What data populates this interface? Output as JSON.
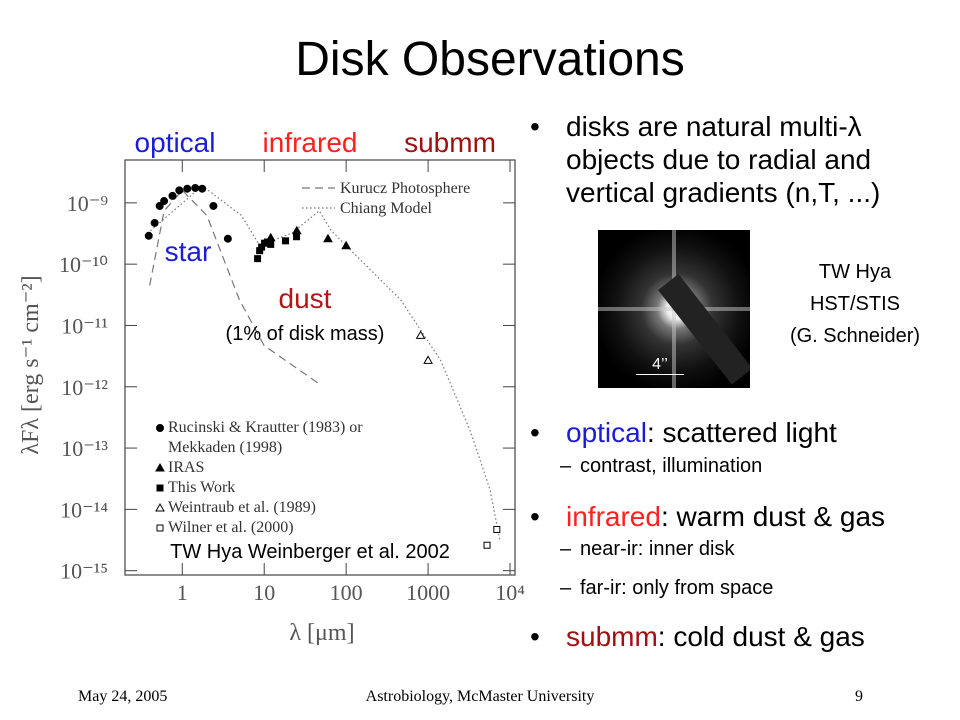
{
  "slide": {
    "title": "Disk Observations",
    "intro_bullet": "disks are natural multi-λ objects due to radial and vertical gradients (n,T, ...)",
    "image": {
      "scale_label": "4’’",
      "caption": [
        "TW Hya",
        "HST/STIS",
        "(G. Schneider)"
      ]
    },
    "bullets": [
      {
        "keyword": "optical",
        "keyword_color": "#1c1cd8",
        "text": ": scattered light",
        "sub": [
          "contrast, illumination"
        ]
      },
      {
        "keyword": "infrared",
        "keyword_color": "#ff2020",
        "text": ": warm dust & gas",
        "sub": [
          "near-ir: inner disk",
          "far-ir: only from space"
        ]
      },
      {
        "keyword": "submm",
        "keyword_color": "#a01010",
        "text": ": cold dust & gas",
        "sub": []
      }
    ],
    "footer": {
      "date": "May 24, 2005",
      "venue": "Astrobiology, McMaster University",
      "page": "9"
    }
  },
  "chart_data": {
    "type": "scatter",
    "x_label": "λ [μm]",
    "y_label": "λFλ [erg s⁻¹ cm⁻²]",
    "xscale": "log",
    "yscale": "log",
    "xlim": [
      0.2,
      11500
    ],
    "ylim": [
      8.5e-16,
      5e-09
    ],
    "xticks": [
      1,
      10,
      100,
      1000,
      {
        "value": 10000,
        "label": "10⁴"
      }
    ],
    "yticks": [
      {
        "value": 1e-09,
        "label": "10⁻⁹"
      },
      {
        "value": 1e-10,
        "label": "10⁻¹⁰"
      },
      {
        "value": 1e-11,
        "label": "10⁻¹¹"
      },
      {
        "value": 1e-12,
        "label": "10⁻¹²"
      },
      {
        "value": 1e-13,
        "label": "10⁻¹³"
      },
      {
        "value": 1e-14,
        "label": "10⁻¹⁴"
      },
      {
        "value": 1e-15,
        "label": "10⁻¹⁵"
      }
    ],
    "annotations": [
      {
        "text": "optical",
        "color": "#1c1cd8"
      },
      {
        "text": "infrared",
        "color": "#ff2020"
      },
      {
        "text": "submm",
        "color": "#a01010"
      },
      {
        "text": "star",
        "color": "#1c1cd8"
      },
      {
        "text": "dust",
        "color": "#b01818"
      },
      {
        "text": "(1% of disk mass)",
        "color": "#000000"
      },
      {
        "text": "TW Hya  Weinberger et al.  2002",
        "color": "#000000"
      }
    ],
    "series": [
      {
        "name": "Kurucz Photosphere",
        "style": "dashed",
        "color": "#777777",
        "x": [
          0.4,
          0.6,
          1.0,
          2,
          5,
          10,
          50
        ],
        "values": [
          4.5e-11,
          7.4e-10,
          1.6e-09,
          6.2e-10,
          2.6e-11,
          4.7e-12,
          1.05e-12
        ]
      },
      {
        "name": "Chiang Model",
        "style": "dotted",
        "color": "#777777",
        "x": [
          0.41,
          1.75,
          5.3,
          8.8,
          21.6,
          47,
          66,
          152,
          464,
          1420,
          3250,
          5700,
          7500
        ],
        "values": [
          3.5e-10,
          1.9e-09,
          6.2e-10,
          2e-10,
          3.2e-10,
          7.4e-10,
          3.5e-10,
          1.15e-10,
          2.6e-11,
          2.7e-12,
          1.95e-13,
          2.1e-14,
          3.2e-15
        ]
      },
      {
        "name": "Rucinski & Krautter (1983) or Mekkaden (1998)",
        "marker": "filled-circle",
        "color": "#000000",
        "x": [
          0.39,
          0.46,
          0.53,
          0.6,
          0.76,
          0.92,
          1.15,
          1.44,
          1.75,
          2.4,
          3.6
        ],
        "values": [
          2.9e-10,
          4.7e-10,
          8.9e-10,
          1.07e-09,
          1.3e-09,
          1.6e-09,
          1.7e-09,
          1.75e-09,
          1.7e-09,
          8.9e-10,
          2.6e-10
        ]
      },
      {
        "name": "IRAS",
        "marker": "filled-triangle",
        "color": "#000000",
        "x": [
          12,
          25,
          60,
          100
        ],
        "values": [
          2.7e-10,
          3.5e-10,
          2.6e-10,
          2e-10
        ]
      },
      {
        "name": "This Work",
        "marker": "filled-square",
        "color": "#000000",
        "x": [
          8.3,
          8.8,
          9.3,
          10.1,
          11.0,
          12.0,
          18.2,
          24.8
        ],
        "values": [
          1.23e-10,
          1.66e-10,
          1.9e-10,
          2.2e-10,
          2.3e-10,
          2.1e-10,
          2.4e-10,
          2.8e-10
        ]
      },
      {
        "name": "Weintraub et al. (1989)",
        "marker": "open-triangle",
        "color": "#000000",
        "x": [
          810,
          1000
        ],
        "values": [
          6.9e-12,
          2.7e-12
        ]
      },
      {
        "name": "Wilner et al. (2000)",
        "marker": "open-square",
        "color": "#000000",
        "x": [
          5240,
          6900
        ],
        "values": [
          2.6e-15,
          4.7e-15
        ]
      }
    ]
  }
}
